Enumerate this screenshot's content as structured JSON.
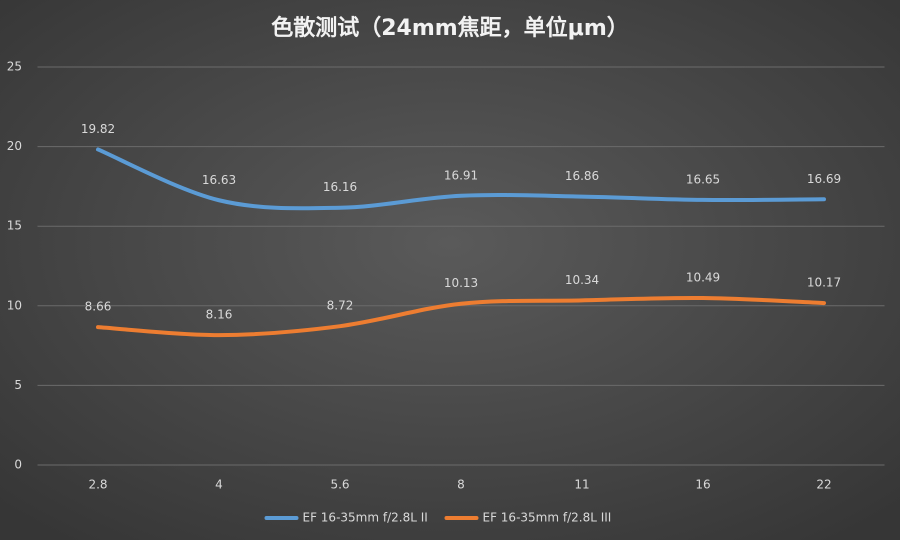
{
  "chart_data": {
    "type": "line",
    "title": "色散测试（24mm焦距，单位μm）",
    "categories": [
      "2.8",
      "4",
      "5.6",
      "8",
      "11",
      "16",
      "22"
    ],
    "series": [
      {
        "name": "EF 16-35mm f/2.8L II",
        "color": "#5b9bd5",
        "values": [
          19.82,
          16.63,
          16.16,
          16.91,
          16.86,
          16.65,
          16.69
        ]
      },
      {
        "name": "EF 16-35mm f/2.8L III",
        "color": "#ed7d31",
        "values": [
          8.66,
          8.16,
          8.72,
          10.13,
          10.34,
          10.49,
          10.17
        ]
      }
    ],
    "ylim": [
      0,
      25
    ],
    "yticks": [
      0,
      5,
      10,
      15,
      20,
      25
    ],
    "grid": true,
    "legend": "bottom",
    "smooth": true
  }
}
